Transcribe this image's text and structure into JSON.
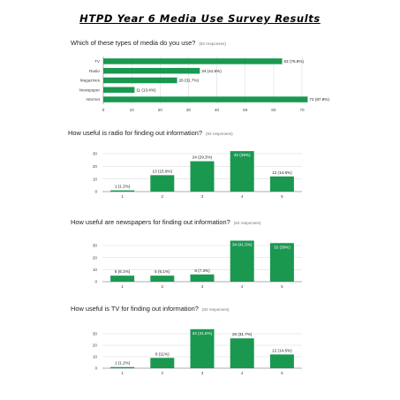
{
  "title": "HTPD Year 6 Media Use Survey Results",
  "colors": {
    "bar": "#1a9850",
    "grid": "#dddddd",
    "axis": "#999999"
  },
  "chart_data": [
    {
      "type": "bar",
      "orientation": "horizontal",
      "title": "Which of these types of media do you use?",
      "subtitle": "(82 responses)",
      "categories": [
        "TV",
        "Radio",
        "Magazines",
        "Newspaper",
        "Internet"
      ],
      "values": [
        63,
        34,
        26,
        11,
        72
      ],
      "labels": [
        "63 (76.8%)",
        "34 (41.5%)",
        "26 (31.7%)",
        "11 (13.4%)",
        "72 (87.8%)"
      ],
      "xlim": [
        0,
        70
      ],
      "xticks": [
        0,
        10,
        20,
        30,
        40,
        50,
        60,
        70
      ],
      "grid": true
    },
    {
      "type": "bar",
      "title": "How useful is radio for finding out information?",
      "subtitle": "(82 responses)",
      "categories": [
        "1",
        "2",
        "3",
        "4",
        "5"
      ],
      "values": [
        1,
        13,
        24,
        32,
        12
      ],
      "labels": [
        "1 (1.2%)",
        "13 (15.9%)",
        "24 (29.3%)",
        "32 (39%)",
        "12 (14.6%)"
      ],
      "ylim": [
        0,
        30
      ],
      "yticks": [
        0,
        10,
        20,
        30
      ],
      "grid": true
    },
    {
      "type": "bar",
      "title": "How useful are newspapers for finding out information?",
      "subtitle": "(82 responses)",
      "categories": [
        "1",
        "2",
        "3",
        "4",
        "5"
      ],
      "values": [
        5,
        5,
        6,
        34,
        32
      ],
      "labels": [
        "5 (6.1%)",
        "5 (6.1%)",
        "6 (7.3%)",
        "34 (41.5%)",
        "32 (39%)"
      ],
      "ylim": [
        0,
        30
      ],
      "yticks": [
        0,
        10,
        20,
        30
      ],
      "grid": true
    },
    {
      "type": "bar",
      "title": "How useful is TV for finding out information?",
      "subtitle": "(82 responses)",
      "categories": [
        "1",
        "2",
        "3",
        "4",
        "5"
      ],
      "values": [
        1,
        9,
        34,
        26,
        12
      ],
      "labels": [
        "1 (1.2%)",
        "9 (11%)",
        "34 (41.5%)",
        "26 (31.7%)",
        "12 (14.6%)"
      ],
      "ylim": [
        0,
        30
      ],
      "yticks": [
        0,
        10,
        20,
        30
      ],
      "grid": true
    }
  ]
}
